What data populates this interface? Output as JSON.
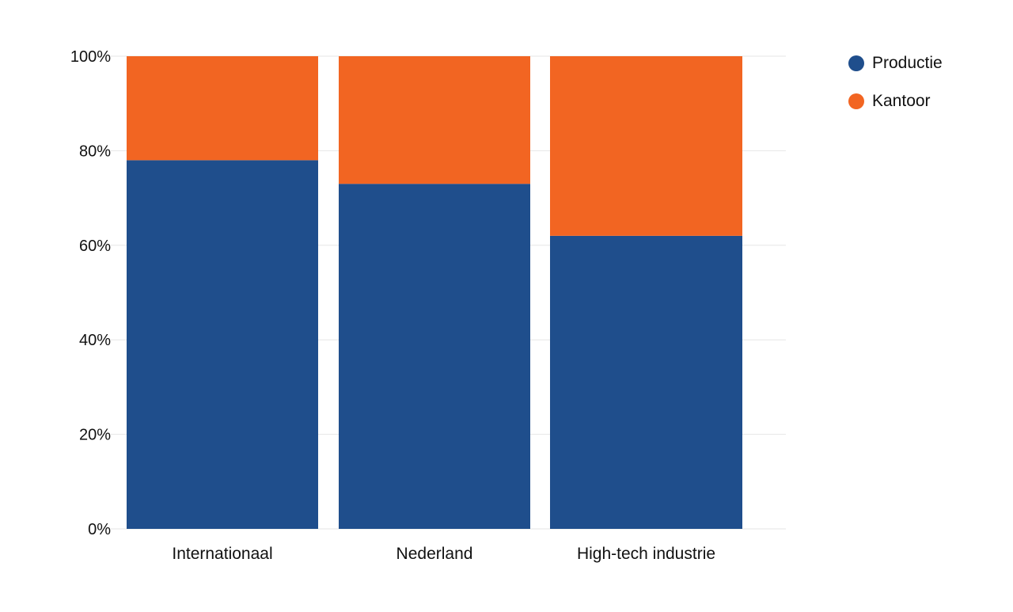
{
  "chart_data": {
    "type": "bar",
    "stacked": true,
    "categories": [
      "Internationaal",
      "Nederland",
      "High-tech industrie"
    ],
    "series": [
      {
        "name": "Productie",
        "color": "#1f4e8c",
        "values": [
          78,
          73,
          62
        ]
      },
      {
        "name": "Kantoor",
        "color": "#f26522",
        "values": [
          22,
          27,
          38
        ]
      }
    ],
    "yticks": [
      "0%",
      "20%",
      "40%",
      "60%",
      "80%",
      "100%"
    ],
    "ylim": [
      0,
      100
    ],
    "grid": true,
    "legend_position": "top-right"
  }
}
